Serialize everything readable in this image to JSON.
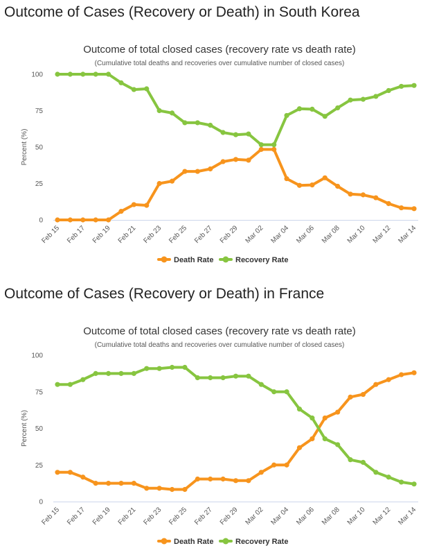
{
  "sections": [
    {
      "heading": "Outcome of Cases (Recovery or Death) in South Korea",
      "chart_data": {
        "type": "line",
        "title": "Outcome of total closed cases (recovery rate vs death rate)",
        "subtitle": "(Cumulative total deaths and recoveries over cumulative number of closed cases)",
        "xlabel": "",
        "ylabel": "Percent (%)",
        "ylim": [
          0,
          100
        ],
        "yticks": [
          "0",
          "25",
          "50",
          "75",
          "100"
        ],
        "x": [
          "Feb 15",
          "Feb 16",
          "Feb 17",
          "Feb 18",
          "Feb 19",
          "Feb 20",
          "Feb 21",
          "Feb 22",
          "Feb 23",
          "Feb 24",
          "Feb 25",
          "Feb 26",
          "Feb 27",
          "Feb 28",
          "Feb 29",
          "Mar 01",
          "Mar 02",
          "Mar 03",
          "Mar 04",
          "Mar 05",
          "Mar 06",
          "Mar 07",
          "Mar 08",
          "Mar 09",
          "Mar 10",
          "Mar 11",
          "Mar 12",
          "Mar 13",
          "Mar 14"
        ],
        "xticks": [
          "Feb 15",
          "Feb 17",
          "Feb 19",
          "Feb 21",
          "Feb 23",
          "Feb 25",
          "Feb 27",
          "Feb 29",
          "Mar 02",
          "Mar 04",
          "Mar 06",
          "Mar 08",
          "Mar 10",
          "Mar 12",
          "Mar 14"
        ],
        "grid": false,
        "legend": "bottom",
        "series": [
          {
            "name": "Death Rate",
            "color": "#f7941d",
            "values": [
              0,
              0,
              0,
              0,
              0,
              5.9,
              10.5,
              10,
              25,
              26.6,
              33.3,
              33.3,
              35,
              40,
              41.5,
              41,
              48.4,
              48.4,
              28.3,
              23.7,
              24,
              28.9,
              23.1,
              17.7,
              17.2,
              15.2,
              11.2,
              8.3,
              7.7
            ]
          },
          {
            "name": "Recovery Rate",
            "color": "#87c540",
            "values": [
              100,
              100,
              100,
              100,
              100,
              94.1,
              89.5,
              90,
              75,
              73.4,
              66.7,
              66.7,
              65,
              60,
              58.5,
              59,
              51.6,
              51.6,
              71.7,
              76.3,
              76,
              71.1,
              76.9,
              82.3,
              82.8,
              84.8,
              88.8,
              91.7,
              92.3
            ]
          }
        ]
      }
    },
    {
      "heading": "Outcome of Cases (Recovery or Death) in France",
      "chart_data": {
        "type": "line",
        "title": "Outcome of total closed cases (recovery rate vs death rate)",
        "subtitle": "(Cumulative total deaths and recoveries over cumulative number of closed cases)",
        "xlabel": "",
        "ylabel": "Percent (%)",
        "ylim": [
          0,
          100
        ],
        "yticks": [
          "0",
          "25",
          "50",
          "75",
          "100"
        ],
        "x": [
          "Feb 15",
          "Feb 16",
          "Feb 17",
          "Feb 18",
          "Feb 19",
          "Feb 20",
          "Feb 21",
          "Feb 22",
          "Feb 23",
          "Feb 24",
          "Feb 25",
          "Feb 26",
          "Feb 27",
          "Feb 28",
          "Feb 29",
          "Mar 01",
          "Mar 02",
          "Mar 03",
          "Mar 04",
          "Mar 05",
          "Mar 06",
          "Mar 07",
          "Mar 08",
          "Mar 09",
          "Mar 10",
          "Mar 11",
          "Mar 12",
          "Mar 13",
          "Mar 14"
        ],
        "xticks": [
          "Feb 15",
          "Feb 17",
          "Feb 19",
          "Feb 21",
          "Feb 23",
          "Feb 25",
          "Feb 27",
          "Feb 29",
          "Mar 02",
          "Mar 04",
          "Mar 06",
          "Mar 08",
          "Mar 10",
          "Mar 12",
          "Mar 14"
        ],
        "grid": false,
        "legend": "bottom",
        "series": [
          {
            "name": "Death Rate",
            "color": "#f7941d",
            "values": [
              20,
              20,
              16.7,
              12.5,
              12.5,
              12.5,
              12.5,
              9.1,
              9.1,
              8.3,
              8.3,
              15.4,
              15.4,
              15.4,
              14.3,
              14.3,
              20,
              25,
              25,
              36.8,
              42.9,
              57.1,
              61.1,
              71.4,
              73.2,
              80,
              83.3,
              86.7,
              88
            ]
          },
          {
            "name": "Recovery Rate",
            "color": "#87c540",
            "values": [
              80,
              80,
              83.3,
              87.5,
              87.5,
              87.5,
              87.5,
              90.9,
              90.9,
              91.7,
              91.7,
              84.6,
              84.6,
              84.6,
              85.7,
              85.7,
              80,
              75,
              75,
              63.2,
              57.1,
              42.9,
              38.9,
              28.6,
              26.8,
              20,
              16.7,
              13.3,
              12
            ]
          }
        ]
      }
    }
  ]
}
